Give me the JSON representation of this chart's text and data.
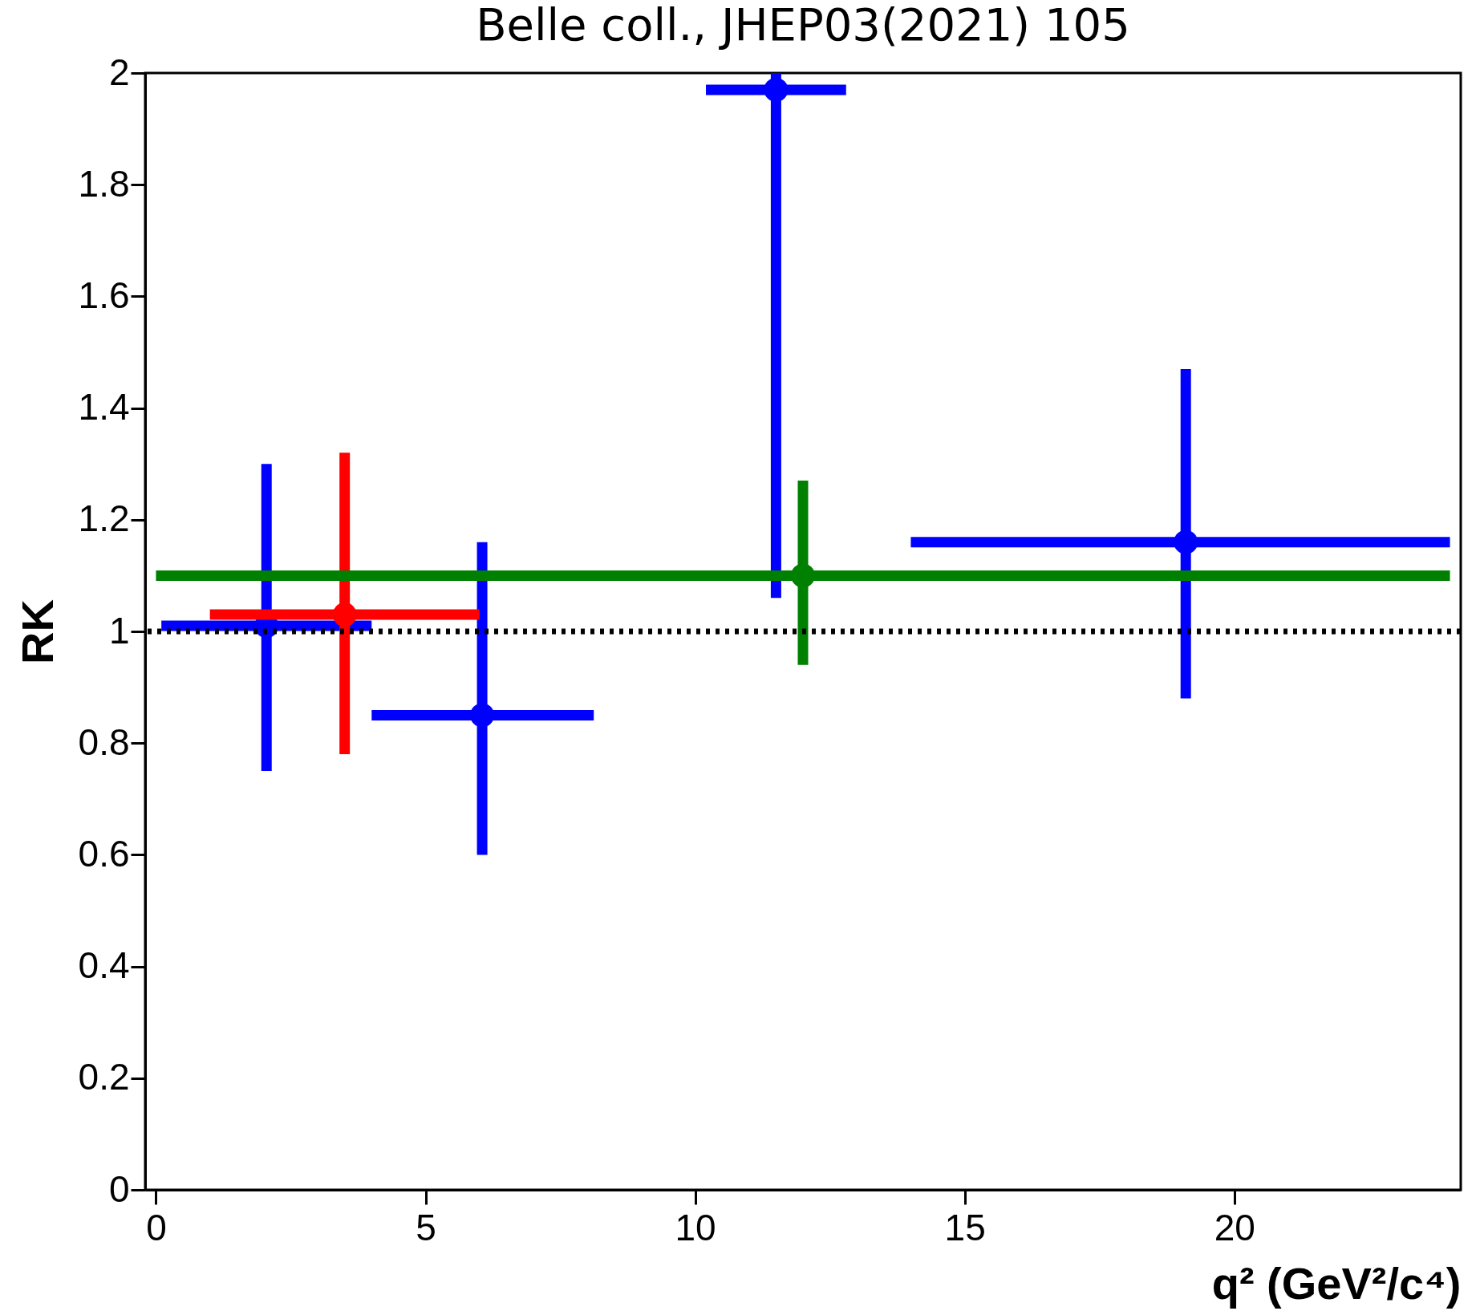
{
  "chart_data": {
    "type": "scatter",
    "title": "Belle coll., JHEP03(2021) 105",
    "xlabel": "q² (GeV²/c⁴)",
    "ylabel": "RK",
    "xlim": [
      -0.2,
      24.2
    ],
    "xticks": [
      0,
      5,
      10,
      15,
      20
    ],
    "ylim": [
      0,
      2
    ],
    "yticks": [
      0,
      0.2,
      0.4,
      0.6,
      0.8,
      1,
      1.2,
      1.4,
      1.6,
      1.8,
      2
    ],
    "grid": false,
    "marker": "circle",
    "ref_lines": [
      {
        "axis": "y",
        "value": 1,
        "color": "#000000",
        "line_style": "dotted"
      }
    ],
    "series": [
      {
        "color": "#0000ff",
        "x": [
          2.05,
          6.05,
          11.5,
          19.1
        ],
        "values": [
          1.01,
          0.85,
          1.97,
          1.16
        ],
        "errors": [
          [
            0.75,
            1.3
          ],
          [
            0.6,
            1.16
          ],
          [
            1.06,
            2.0
          ],
          [
            0.88,
            1.47
          ]
        ],
        "xerrors": [
          [
            0.1,
            4.0
          ],
          [
            4.0,
            8.12
          ],
          [
            10.2,
            12.8
          ],
          [
            14.0,
            24.0
          ]
        ]
      },
      {
        "color": "#ff0000",
        "x": [
          3.5
        ],
        "values": [
          1.03
        ],
        "errors": [
          [
            0.78,
            1.32
          ]
        ],
        "xerrors": [
          [
            1.0,
            6.0
          ]
        ]
      },
      {
        "color": "#008000",
        "x": [
          12.0
        ],
        "values": [
          1.1
        ],
        "errors": [
          [
            0.94,
            1.27
          ]
        ],
        "xerrors": [
          [
            0.0,
            24.0
          ]
        ]
      }
    ]
  }
}
